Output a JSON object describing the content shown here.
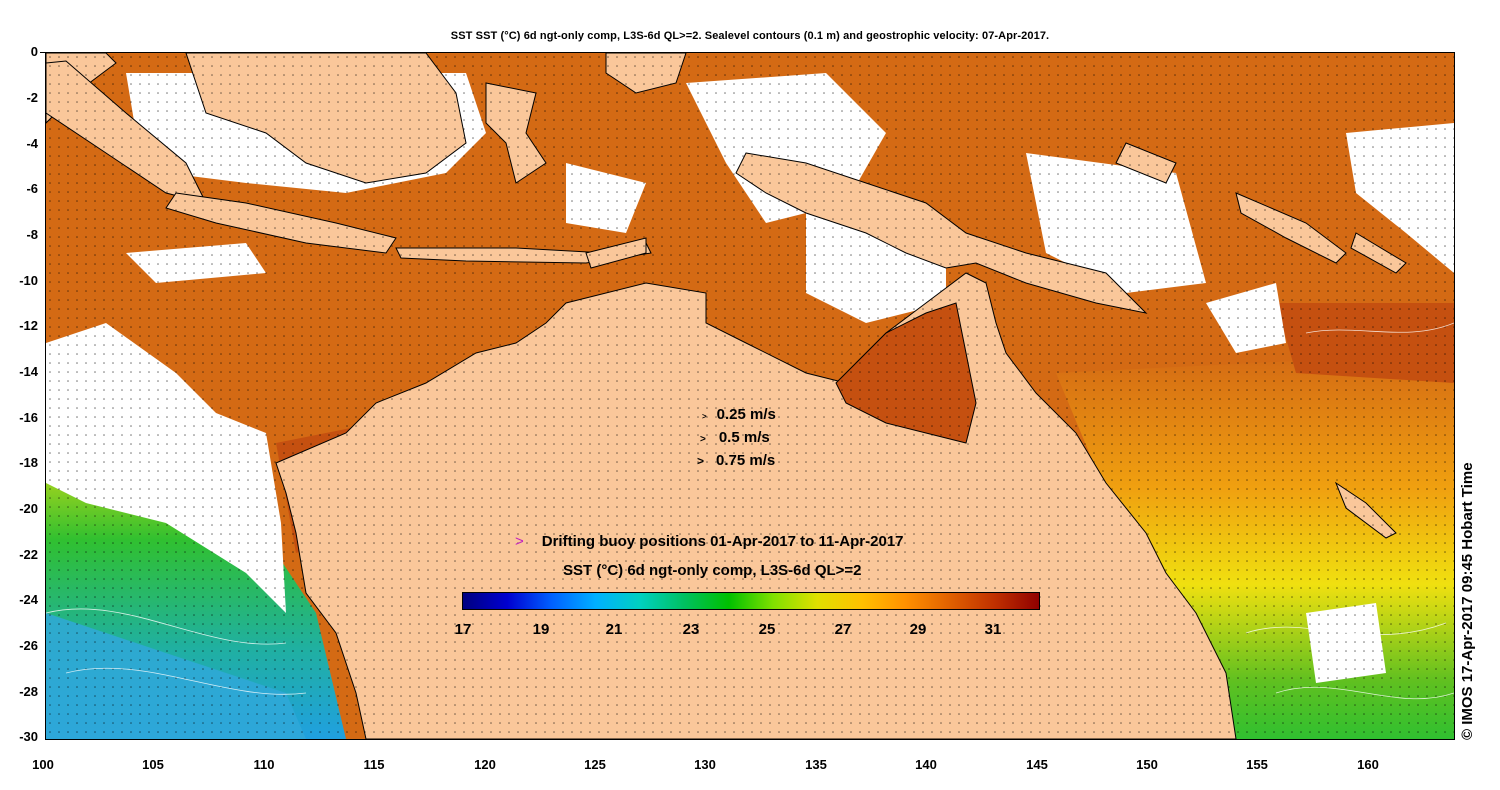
{
  "title": "SST SST (°C) 6d ngt-only comp, L3S-6d QL>=2. Sealevel contours (0.1 m) and geostrophic velocity: 07-Apr-2017.",
  "copyright": "©  IMOS 17-Apr-2017 09:45 Hobart Time",
  "y_axis": {
    "labels": [
      "0",
      "-2",
      "-4",
      "-6",
      "-8",
      "-10",
      "-12",
      "-14",
      "-16",
      "-18",
      "-20",
      "-22",
      "-24",
      "-26",
      "-28",
      "-30"
    ]
  },
  "x_axis": {
    "labels": [
      "100",
      "105",
      "110",
      "115",
      "120",
      "125",
      "130",
      "135",
      "140",
      "145",
      "150",
      "155",
      "160"
    ]
  },
  "velocity_key": [
    {
      "label": "0.25 m/s",
      "symbol": ">"
    },
    {
      "label": "0.5 m/s",
      "symbol": ">"
    },
    {
      "label": "0.75 m/s",
      "symbol": ">"
    }
  ],
  "buoy_legend": {
    "symbol": ">",
    "text": "Drifting buoy positions 01-Apr-2017 to 11-Apr-2017",
    "symbol_color": "#c020c0"
  },
  "colorbar": {
    "title": "SST (°C) 6d ngt-only comp, L3S-6d QL>=2",
    "labels": [
      "17",
      "19",
      "21",
      "23",
      "25",
      "27",
      "29",
      "31"
    ],
    "stops": [
      "#000080",
      "#0000d0",
      "#0060ff",
      "#00b0ff",
      "#00d0c0",
      "#00c060",
      "#00c000",
      "#80e000",
      "#e0e000",
      "#ffc000",
      "#ff9000",
      "#e06000",
      "#c03000",
      "#900000"
    ]
  },
  "colors": {
    "land": "#fac79a",
    "sst_warm": "#d46a14",
    "sst_hot": "#c55010",
    "sst_mid": "#f0a010",
    "sst_yellow": "#f0e010",
    "sst_green": "#30c030",
    "sst_cyan": "#20b0e0",
    "no_data": "#ffffff"
  }
}
